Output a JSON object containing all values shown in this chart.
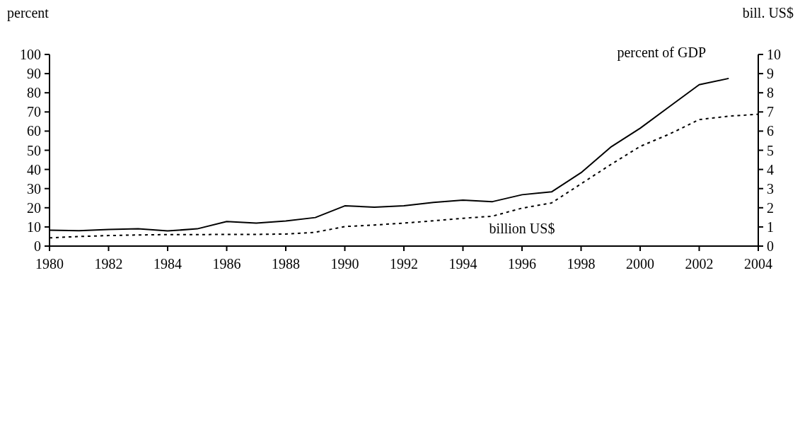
{
  "chart_data": {
    "type": "line",
    "ylabel": "percent",
    "y2label": "bill. US$",
    "x": [
      1980,
      1981,
      1982,
      1983,
      1984,
      1985,
      1986,
      1987,
      1988,
      1989,
      1990,
      1991,
      1992,
      1993,
      1994,
      1995,
      1996,
      1997,
      1998,
      1999,
      2000,
      2001,
      2002,
      2003,
      2004
    ],
    "xlim": [
      1980,
      2004
    ],
    "xticks": [
      1980,
      1982,
      1984,
      1986,
      1988,
      1990,
      1992,
      1994,
      1996,
      1998,
      2000,
      2002,
      2004
    ],
    "ylim": [
      0,
      100
    ],
    "yticks": [
      0,
      10,
      20,
      30,
      40,
      50,
      60,
      70,
      80,
      90,
      100
    ],
    "y2lim": [
      0,
      10
    ],
    "y2ticks": [
      0,
      1,
      2,
      3,
      4,
      5,
      6,
      7,
      8,
      9,
      10
    ],
    "series": [
      {
        "name": "percent of GDP",
        "color": "#000000",
        "line_style": "solid",
        "values": [
          8.3,
          8.0,
          8.7,
          9.0,
          7.9,
          9.0,
          12.8,
          12.0,
          13.1,
          14.9,
          21.0,
          20.3,
          21.0,
          22.8,
          24.0,
          23.2,
          26.8,
          28.3,
          38.3,
          51.6,
          61.5,
          72.9,
          84.2,
          87.5,
          null
        ]
      },
      {
        "name": "billion US$",
        "color": "#000000",
        "line_style": "dotted",
        "axis": "y2",
        "values": [
          0.43,
          0.5,
          0.55,
          0.58,
          0.6,
          0.6,
          0.61,
          0.61,
          0.63,
          0.72,
          1.02,
          1.1,
          1.2,
          1.32,
          1.45,
          1.56,
          1.98,
          2.25,
          3.25,
          4.25,
          5.2,
          5.85,
          6.6,
          6.78,
          6.88
        ]
      }
    ],
    "grid": false
  }
}
